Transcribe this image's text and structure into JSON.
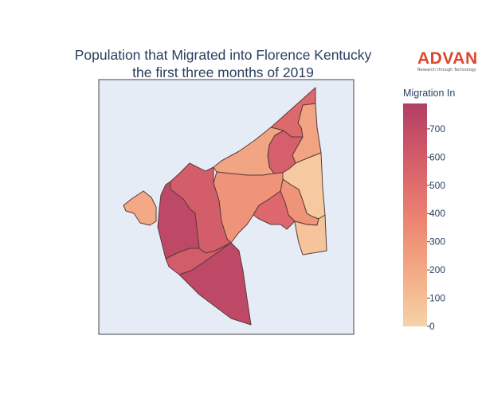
{
  "title": {
    "line1": "Population that Migrated into Florence Kentucky",
    "line2": "the first three months of 2019"
  },
  "logo": {
    "word": "ADVAN",
    "tagline": "Research through Technology",
    "color": "#e0452f"
  },
  "colorbar": {
    "title": "Migration In",
    "min": 0,
    "max": 790,
    "ticks": [
      "0",
      "100",
      "200",
      "300",
      "400",
      "500",
      "600",
      "700"
    ],
    "colorscale": [
      "#f6d2a9",
      "#f5b78e",
      "#f19c7c",
      "#ea8171",
      "#dd686c",
      "#ca5268",
      "#b13f64"
    ]
  },
  "map": {
    "background": "#e5ecf6",
    "regions": [
      {
        "name": "region-top-northeast",
        "value": 520
      },
      {
        "name": "region-north-strip",
        "value": 230
      },
      {
        "name": "region-northeast-middle",
        "value": 580
      },
      {
        "name": "region-east-strip",
        "value": 40
      },
      {
        "name": "region-north-central",
        "value": 220
      },
      {
        "name": "region-east-inner",
        "value": 300
      },
      {
        "name": "region-central",
        "value": 300
      },
      {
        "name": "region-central-east",
        "value": 530
      },
      {
        "name": "region-southeast",
        "value": 70
      },
      {
        "name": "region-west-small",
        "value": 200
      },
      {
        "name": "region-northwest",
        "value": 590
      },
      {
        "name": "region-west",
        "value": 720
      },
      {
        "name": "region-southwest",
        "value": 600
      },
      {
        "name": "region-south",
        "value": 720
      }
    ]
  }
}
